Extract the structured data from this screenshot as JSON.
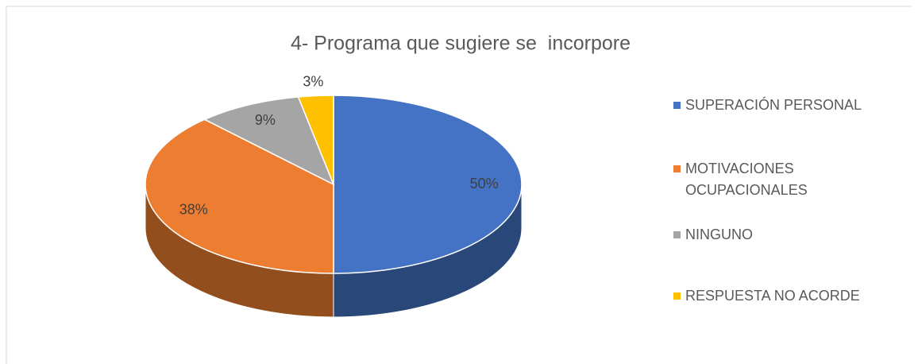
{
  "chart_data": {
    "type": "pie",
    "title": "4- Programa que sugiere se  incorpore",
    "categories": [
      "SUPERACIÓN PERSONAL",
      "MOTIVACIONES OCUPACIONALES",
      "NINGUNO",
      "RESPUESTA NO ACORDE"
    ],
    "values": [
      50,
      38,
      9,
      3
    ],
    "value_labels": [
      "50%",
      "38%",
      "9%",
      "3%"
    ],
    "colors": [
      "#4472c4",
      "#ed7d31",
      "#a5a5a5",
      "#ffc000"
    ],
    "legend": "right"
  }
}
